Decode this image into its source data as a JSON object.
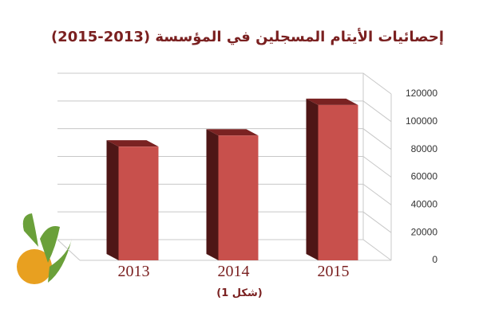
{
  "chart_data": {
    "type": "bar3d",
    "title": "إحصائيات الأيتام المسجلين في المؤسسة (2013-2015)",
    "caption": "(شكل 1)",
    "categories": [
      "2013",
      "2014",
      "2015"
    ],
    "values": [
      82000,
      90000,
      112000
    ],
    "color": "#c8504c",
    "ylim": [
      0,
      120000
    ],
    "yticks": [
      0,
      20000,
      40000,
      60000,
      80000,
      100000,
      120000
    ],
    "grid": true
  }
}
